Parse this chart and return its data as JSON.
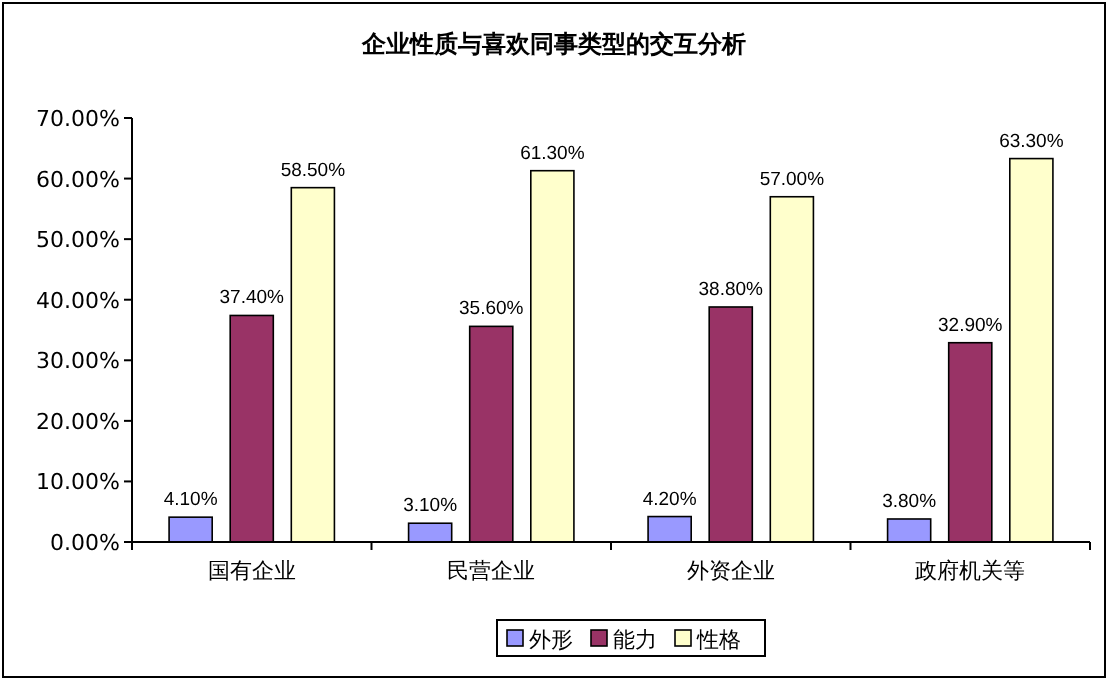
{
  "chart_data": {
    "type": "bar",
    "title": "企业性质与喜欢同事类型的交互分析",
    "categories": [
      "国有企业",
      "民营企业",
      "外资企业",
      "政府机关等"
    ],
    "series": [
      {
        "name": "外形",
        "color": "#9999ff",
        "values": [
          4.1,
          3.1,
          4.2,
          3.8
        ],
        "value_labels": [
          "4.10%",
          "3.10%",
          "4.20%",
          "3.80%"
        ]
      },
      {
        "name": "能力",
        "color": "#993366",
        "values": [
          37.4,
          35.6,
          38.8,
          32.9
        ],
        "value_labels": [
          "37.40%",
          "35.60%",
          "38.80%",
          "32.90%"
        ]
      },
      {
        "name": "性格",
        "color": "#ffffcc",
        "values": [
          58.5,
          61.3,
          57.0,
          63.3
        ],
        "value_labels": [
          "58.50%",
          "61.30%",
          "57.00%",
          "63.30%"
        ]
      }
    ],
    "ylim": [
      0,
      70
    ],
    "yticks": [
      {
        "value": 0,
        "label": "0.00%"
      },
      {
        "value": 10,
        "label": "10.00%"
      },
      {
        "value": 20,
        "label": "20.00%"
      },
      {
        "value": 30,
        "label": "30.00%"
      },
      {
        "value": 40,
        "label": "40.00%"
      },
      {
        "value": 50,
        "label": "50.00%"
      },
      {
        "value": 60,
        "label": "60.00%"
      },
      {
        "value": 70,
        "label": "70.00%"
      }
    ],
    "grid": false,
    "legend": "bottom"
  }
}
